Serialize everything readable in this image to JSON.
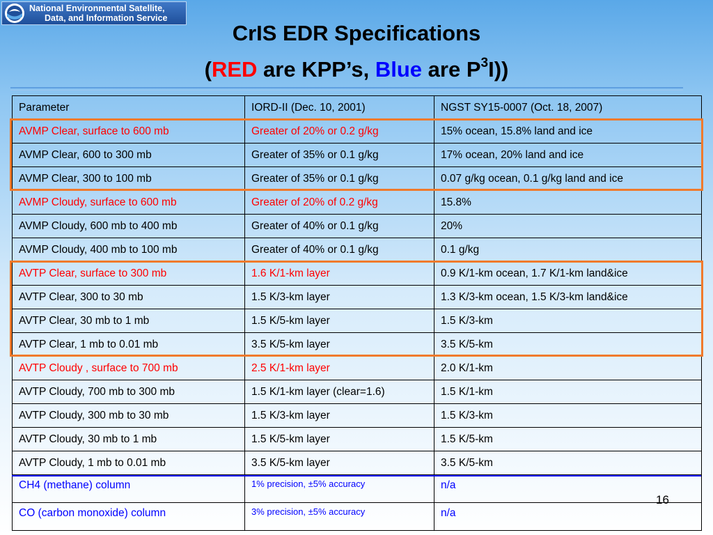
{
  "header": {
    "logo_line1": "National Environmental Satellite,",
    "logo_line2": "Data, and Information Service",
    "seal_text": "NOAA"
  },
  "title": {
    "line1": "CrIS EDR Specifications",
    "open": "(",
    "red_word": "RED",
    "mid": " are KPP’s, ",
    "blue_word": "Blue",
    "tail": " are P",
    "sup": "3",
    "close": "I))"
  },
  "table": {
    "headers": [
      "Parameter",
      "IORD-II (Dec. 10, 2001)",
      "NGST SY15-0007 (Oct. 18, 2007)"
    ],
    "rows": [
      {
        "cells": [
          "AVMP Clear, surface to 600 mb",
          "Greater of 20% or 0.2 g/kg",
          "15% ocean, 15.8% land and ice"
        ],
        "kind": "kpp"
      },
      {
        "cells": [
          "AVMP Clear, 600 to 300 mb",
          "Greater of 35% or 0.1 g/kg",
          "17% ocean, 20% land and ice"
        ],
        "kind": "normal"
      },
      {
        "cells": [
          "AVMP Clear, 300 to 100 mb",
          "Greater of 35% or 0.1 g/kg",
          "0.07 g/kg ocean, 0.1 g/kg land and ice"
        ],
        "kind": "normal"
      },
      {
        "cells": [
          "AVMP Cloudy, surface to 600 mb",
          "Greater of 20% of 0.2 g/kg",
          "15.8%"
        ],
        "kind": "kpp"
      },
      {
        "cells": [
          "AVMP Cloudy, 600 mb to 400 mb",
          "Greater of 40% or 0.1 g/kg",
          "20%"
        ],
        "kind": "normal"
      },
      {
        "cells": [
          "AVMP Cloudy, 400 mb to 100 mb",
          "Greater of 40% or 0.1 g/kg",
          "0.1 g/kg"
        ],
        "kind": "normal"
      },
      {
        "cells": [
          "AVTP Clear, surface to 300 mb",
          "1.6 K/1-km layer",
          "0.9 K/1-km ocean, 1.7 K/1-km land&ice"
        ],
        "kind": "kpp"
      },
      {
        "cells": [
          "AVTP Clear, 300 to 30 mb",
          "1.5 K/3-km layer",
          "1.3 K/3-km ocean, 1.5 K/3-km land&ice"
        ],
        "kind": "normal"
      },
      {
        "cells": [
          "AVTP Clear, 30 mb to 1 mb",
          "1.5 K/5-km layer",
          "1.5 K/3-km"
        ],
        "kind": "normal"
      },
      {
        "cells": [
          "AVTP Clear, 1 mb to 0.01 mb",
          "3.5 K/5-km layer",
          "3.5 K/5-km"
        ],
        "kind": "normal"
      },
      {
        "cells": [
          "AVTP Cloudy , surface to 700 mb",
          "2.5 K/1-km layer",
          "2.0 K/1-km"
        ],
        "kind": "kpp"
      },
      {
        "cells": [
          "AVTP Cloudy, 700 mb to 300 mb",
          "1.5 K/1-km layer (clear=1.6)",
          "1.5 K/1-km"
        ],
        "kind": "normal"
      },
      {
        "cells": [
          "AVTP Cloudy, 300 mb to 30 mb",
          "1.5 K/3-km layer",
          "1.5 K/3-km"
        ],
        "kind": "normal"
      },
      {
        "cells": [
          "AVTP Cloudy, 30 mb to 1 mb",
          "1.5 K/5-km layer",
          "1.5 K/5-km"
        ],
        "kind": "normal"
      },
      {
        "cells": [
          "AVTP Cloudy, 1 mb to 0.01 mb",
          "3.5 K/5-km layer",
          "3.5 K/5-km"
        ],
        "kind": "normal"
      },
      {
        "cells": [
          "CH4 (methane) column",
          "1% precision, ±5% accuracy",
          "n/a"
        ],
        "kind": "p3i"
      },
      {
        "cells": [
          "CO (carbon monoxide) column",
          "3% precision, ±5% accuracy",
          "n/a"
        ],
        "kind": "p3i"
      }
    ]
  },
  "page_number": "16",
  "colors": {
    "kpp": "#ff0000",
    "p3i": "#0000ff",
    "highlight_box": "#f07a2c"
  }
}
